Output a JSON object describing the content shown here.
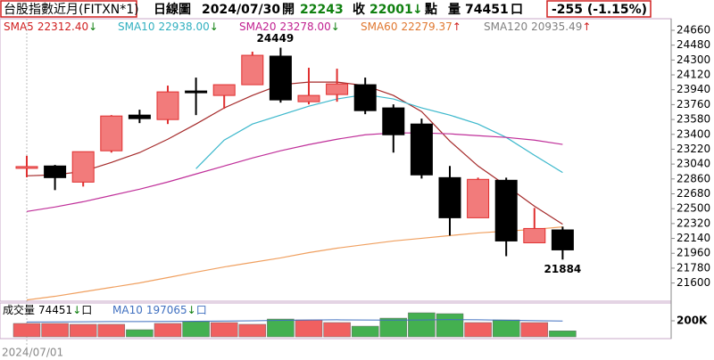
{
  "chart_data": {
    "type": "candlestick",
    "header": {
      "symbol": "台股指數近月(FITXN*1)",
      "period": "日線圖",
      "date": "2024/07/30",
      "open_label": "開",
      "close_label": "收",
      "close_trend": "↓",
      "point_label": "點",
      "volume_label": "量",
      "unit": "口",
      "change": "-255 (-1.15%)"
    },
    "categories": [
      "2024/07/01",
      null,
      null,
      null,
      null,
      null,
      null,
      null,
      null,
      null,
      null,
      null,
      null,
      null,
      null,
      null,
      null,
      null,
      null,
      null
    ],
    "open": [
      23000,
      23017,
      22822,
      23201,
      23633,
      23579,
      23925,
      23871,
      24001,
      24347,
      23795,
      23882,
      24001,
      23720,
      23525,
      22876,
      22390,
      22844,
      22087,
      22243
    ],
    "high": [
      23140,
      23030,
      23190,
      23633,
      23698,
      23990,
      24087,
      24001,
      24401,
      24449,
      24206,
      24195,
      24087,
      23763,
      23590,
      23017,
      22876,
      22876,
      22509,
      22282
    ],
    "low": [
      22880,
      22725,
      22768,
      23179,
      23536,
      23525,
      23633,
      23709,
      24001,
      23784,
      23763,
      23795,
      23644,
      23179,
      22865,
      22174,
      22390,
      21925,
      22087,
      21884
    ],
    "close": [
      23010,
      22876,
      23190,
      23622,
      23590,
      23914,
      23920,
      24001,
      24357,
      23817,
      23871,
      24011,
      23687,
      23395,
      22909,
      22390,
      22855,
      22109,
      22260,
      22001
    ],
    "up_color": "#f27b7b",
    "up_border": "#e03030",
    "down_color": "#000000",
    "ylim": [
      21380,
      24800
    ],
    "yticks": [
      24660,
      24480,
      24300,
      24120,
      23940,
      23760,
      23580,
      23400,
      23220,
      23040,
      22860,
      22680,
      22500,
      22320,
      22140,
      21960,
      21780,
      21600
    ],
    "moving_averages": [
      {
        "name": "SMA5",
        "last_label": "22312.40",
        "trend": "↓",
        "color": "#a52a2a",
        "label_color": "#d02020",
        "values": [
          22898,
          22909,
          22952,
          23060,
          23179,
          23341,
          23525,
          23720,
          23871,
          24001,
          24033,
          24033,
          23990,
          23871,
          23676,
          23319,
          23017,
          22779,
          22530,
          22312.4
        ]
      },
      {
        "name": "SMA10",
        "last_label": "22938.00",
        "trend": "↓",
        "color": "#3cb8cc",
        "label_color": "#30b0c0",
        "values": [
          null,
          null,
          null,
          null,
          null,
          null,
          22984,
          23330,
          23525,
          23633,
          23741,
          23828,
          23882,
          23828,
          23720,
          23633,
          23525,
          23363,
          23147,
          22938
        ]
      },
      {
        "name": "SMA20",
        "last_label": "23278.00",
        "trend": "↓",
        "color": "#c0309a",
        "label_color": "#c02090",
        "values": [
          22466,
          22520,
          22584,
          22660,
          22736,
          22823,
          22920,
          23017,
          23114,
          23201,
          23276,
          23341,
          23395,
          23417,
          23417,
          23406,
          23384,
          23363,
          23330,
          23278
        ]
      },
      {
        "name": "SMA60",
        "last_label": "22279.37",
        "trend": "↑",
        "color": "#f0a060",
        "label_color": "#e07830",
        "values": [
          21395,
          21439,
          21493,
          21547,
          21601,
          21666,
          21731,
          21795,
          21849,
          21904,
          21968,
          22022,
          22066,
          22109,
          22141,
          22174,
          22206,
          22228,
          22249,
          22279.37
        ]
      },
      {
        "name": "SMA120",
        "last_label": "20935.49",
        "trend": "↑",
        "color": "#909090",
        "label_color": "#808080"
      }
    ],
    "volume": {
      "title": "成交量",
      "trend": "↓",
      "unit": "口",
      "values": [
        167000,
        167000,
        156000,
        156000,
        89000,
        167000,
        189000,
        178000,
        156000,
        222000,
        211000,
        178000,
        133000,
        233000,
        300000,
        289000,
        178000,
        211000,
        178000,
        74451
      ],
      "colors": [
        "#f06060",
        "#f06060",
        "#f06060",
        "#f06060",
        "#44b050",
        "#f06060",
        "#44b050",
        "#f06060",
        "#f06060",
        "#44b050",
        "#f06060",
        "#f06060",
        "#44b050",
        "#44b050",
        "#44b050",
        "#44b050",
        "#f06060",
        "#44b050",
        "#f06060",
        "#44b050"
      ],
      "ylim": [
        0,
        389000
      ],
      "yticks": [
        {
          "value": 200000,
          "label": "200K"
        }
      ],
      "ma": {
        "name": "MA10",
        "last_label": "197065",
        "trend": "↓",
        "unit": "口",
        "color": "#4070c0",
        "values": [
          185000,
          186000,
          188000,
          190000,
          190000,
          192000,
          195000,
          197000,
          200000,
          205000,
          210000,
          212000,
          210000,
          208000,
          210000,
          215000,
          212000,
          207000,
          202000,
          197065
        ]
      }
    }
  }
}
